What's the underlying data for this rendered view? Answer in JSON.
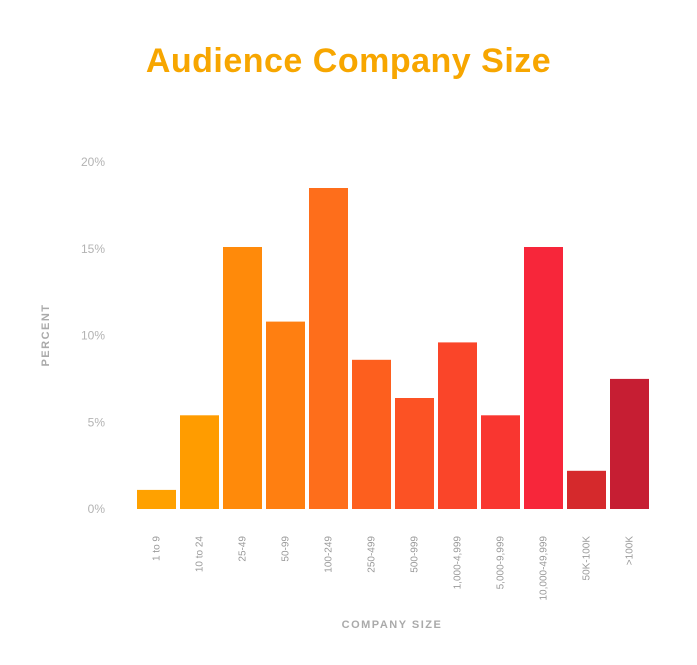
{
  "chart_data": {
    "type": "bar",
    "title": "Audience Company Size",
    "xlabel": "COMPANY SIZE",
    "ylabel": "PERCENT",
    "ylim": [
      0,
      20
    ],
    "yticks": [
      0,
      5,
      10,
      15,
      20
    ],
    "ytick_labels": [
      "0%",
      "5%",
      "10%",
      "15%",
      "20%"
    ],
    "categories": [
      "1 to 9",
      "10 to 24",
      "25-49",
      "50-99",
      "100-249",
      "250-499",
      "500-999",
      "1,000-4,999",
      "5,000-9,999",
      "10,000-49,999",
      "50K-100K",
      ">100K"
    ],
    "values": [
      1.1,
      5.4,
      15.1,
      10.8,
      18.5,
      8.6,
      6.4,
      9.6,
      5.4,
      15.1,
      2.2,
      7.5
    ],
    "colors": [
      "#ffa100",
      "#ff9c00",
      "#ff8a0a",
      "#ff7f11",
      "#fe6e1b",
      "#fd5f1e",
      "#fc5224",
      "#fa4529",
      "#f93630",
      "#f7263a",
      "#d5292c",
      "#c61e33"
    ],
    "title_color": "#f7a600"
  }
}
